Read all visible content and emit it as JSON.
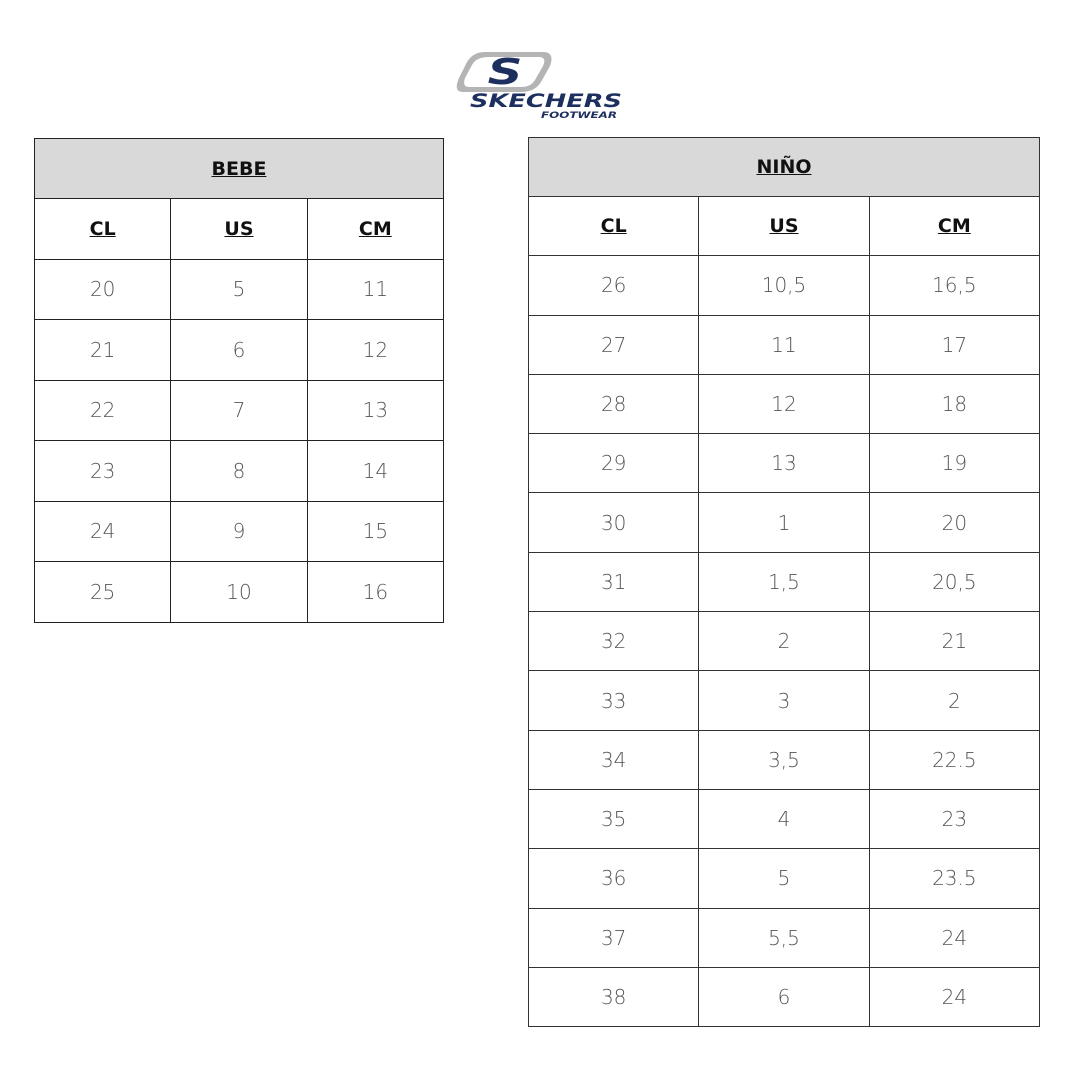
{
  "logo": {
    "brand": "SKECHERS",
    "sub": "FOOTWEAR",
    "colors": {
      "navy": "#1c2f5e",
      "gray": "#b4b4b4"
    }
  },
  "bebe": {
    "title": "BEBE",
    "columns": [
      "CL",
      "US",
      "CM"
    ],
    "rows": [
      [
        "20",
        "5",
        "11"
      ],
      [
        "21",
        "6",
        "12"
      ],
      [
        "22",
        "7",
        "13"
      ],
      [
        "23",
        "8",
        "14"
      ],
      [
        "24",
        "9",
        "15"
      ],
      [
        "25",
        "10",
        "16"
      ]
    ]
  },
  "nino": {
    "title": "NIÑO",
    "columns": [
      "CL",
      "US",
      "CM"
    ],
    "rows": [
      [
        "26",
        "10,5",
        "16,5"
      ],
      [
        "27",
        "11",
        "17"
      ],
      [
        "28",
        "12",
        "18"
      ],
      [
        "29",
        "13",
        "19"
      ],
      [
        "30",
        "1",
        "20"
      ],
      [
        "31",
        "1,5",
        "20,5"
      ],
      [
        "32",
        "2",
        "21"
      ],
      [
        "33",
        "3",
        "2"
      ],
      [
        "34",
        "3,5",
        "22.5"
      ],
      [
        "35",
        "4",
        "23"
      ],
      [
        "36",
        "5",
        "23.5"
      ],
      [
        "37",
        "5,5",
        "24"
      ],
      [
        "38",
        "6",
        "24"
      ]
    ]
  }
}
